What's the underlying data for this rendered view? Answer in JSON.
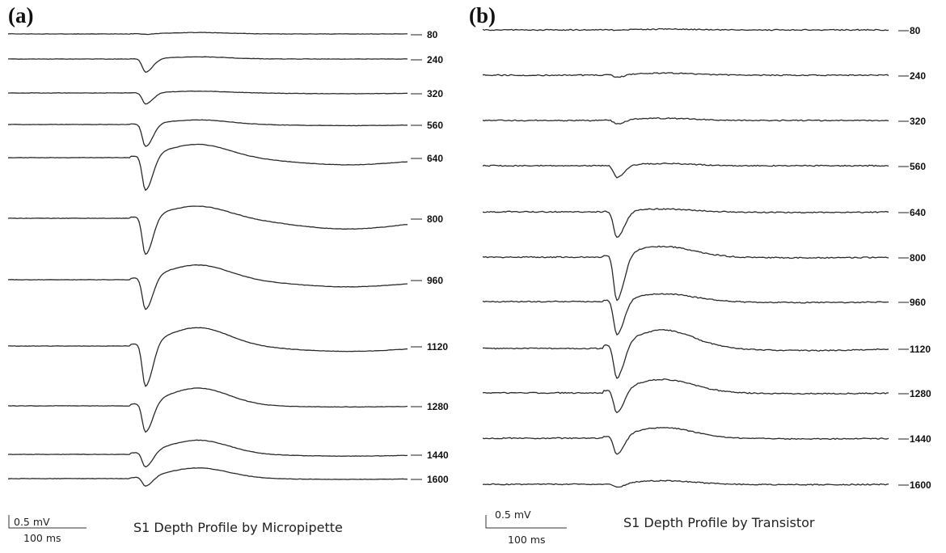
{
  "chart_data": [
    {
      "type": "line",
      "panel_label": "(a)",
      "title": "S1 Depth Profile by Micropipette",
      "scale_bar": {
        "voltage": "0.5 mV",
        "time": "100 ms"
      },
      "series": [
        {
          "name": "80",
          "trough_mV": -0.02,
          "peak_mV": 0.04,
          "late_mV": 0.0
        },
        {
          "name": "240",
          "trough_mV": -0.38,
          "peak_mV": 0.06,
          "late_mV": 0.0
        },
        {
          "name": "320",
          "trough_mV": -0.32,
          "peak_mV": 0.05,
          "late_mV": -0.02
        },
        {
          "name": "560",
          "trough_mV": -0.65,
          "peak_mV": 0.13,
          "late_mV": -0.03
        },
        {
          "name": "640",
          "trough_mV": -1.0,
          "peak_mV": 0.38,
          "late_mV": -0.2
        },
        {
          "name": "800",
          "trough_mV": -1.1,
          "peak_mV": 0.35,
          "late_mV": -0.3
        },
        {
          "name": "960",
          "trough_mV": -0.93,
          "peak_mV": 0.42,
          "late_mV": -0.2
        },
        {
          "name": "1120",
          "trough_mV": -1.25,
          "peak_mV": 0.52,
          "late_mV": -0.15
        },
        {
          "name": "1280",
          "trough_mV": -0.85,
          "peak_mV": 0.5,
          "late_mV": -0.03
        },
        {
          "name": "1440",
          "trough_mV": -0.45,
          "peak_mV": 0.4,
          "late_mV": -0.05
        },
        {
          "name": "1600",
          "trough_mV": -0.28,
          "peak_mV": 0.3,
          "late_mV": -0.02
        }
      ]
    },
    {
      "type": "line",
      "panel_label": "(b)",
      "title": "S1 Depth Profile by Transistor",
      "scale_bar": {
        "voltage": "0.5 mV",
        "time": "100 ms"
      },
      "series": [
        {
          "name": "80",
          "trough_mV": -0.02,
          "peak_mV": 0.02,
          "late_mV": 0.0
        },
        {
          "name": "240",
          "trough_mV": -0.08,
          "peak_mV": 0.06,
          "late_mV": 0.0
        },
        {
          "name": "320",
          "trough_mV": -0.12,
          "peak_mV": 0.06,
          "late_mV": 0.0
        },
        {
          "name": "560",
          "trough_mV": -0.35,
          "peak_mV": 0.06,
          "late_mV": 0.0
        },
        {
          "name": "640",
          "trough_mV": -0.75,
          "peak_mV": 0.08,
          "late_mV": -0.02
        },
        {
          "name": "800",
          "trough_mV": -1.3,
          "peak_mV": 0.3,
          "late_mV": -0.02
        },
        {
          "name": "960",
          "trough_mV": -1.0,
          "peak_mV": 0.22,
          "late_mV": -0.03
        },
        {
          "name": "1120",
          "trough_mV": -1.0,
          "peak_mV": 0.52,
          "late_mV": -0.06
        },
        {
          "name": "1280",
          "trough_mV": -0.68,
          "peak_mV": 0.38,
          "late_mV": -0.02
        },
        {
          "name": "1440",
          "trough_mV": -0.55,
          "peak_mV": 0.3,
          "late_mV": -0.02
        },
        {
          "name": "1600",
          "trough_mV": -0.12,
          "peak_mV": 0.1,
          "late_mV": -0.01
        }
      ]
    }
  ]
}
